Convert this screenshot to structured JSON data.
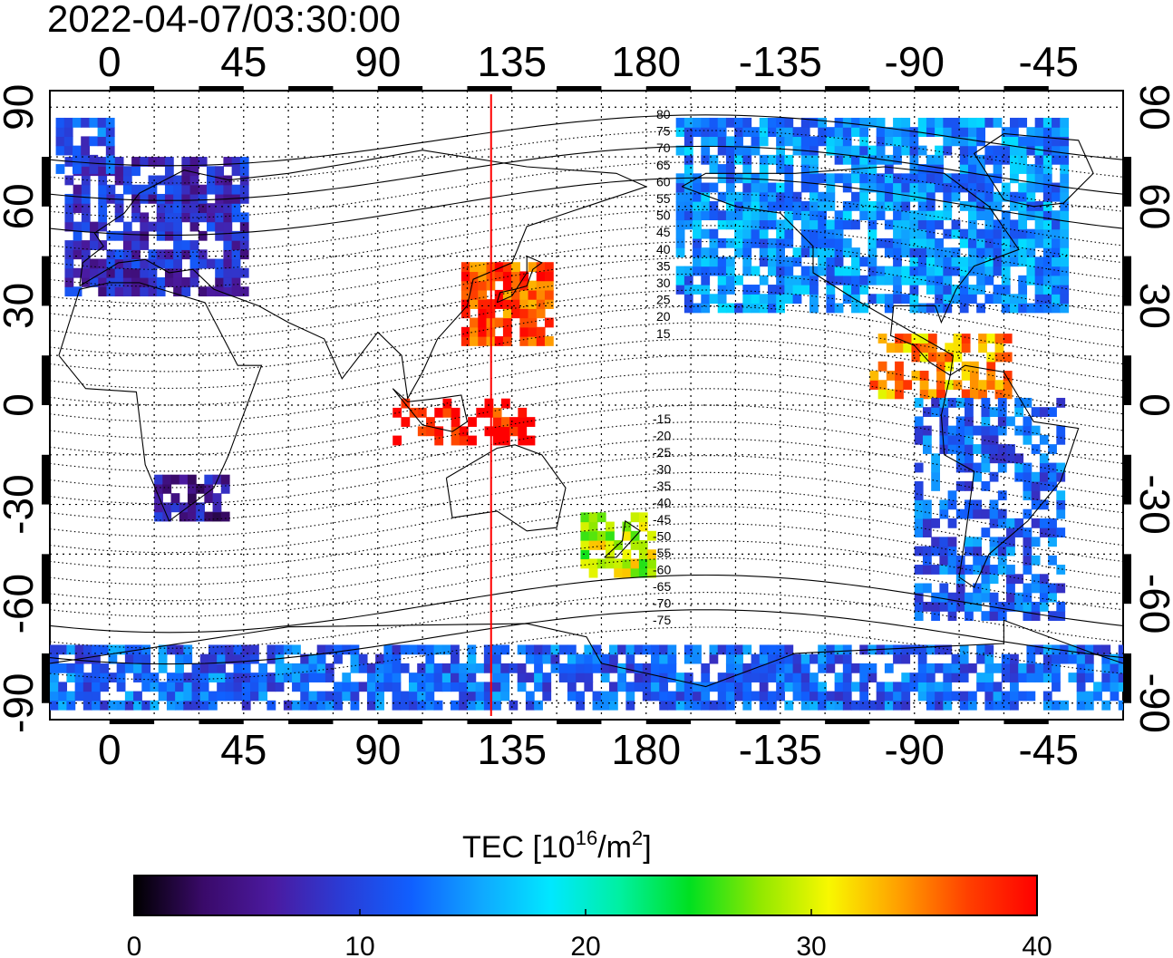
{
  "title": "2022-04-07/03:30:00",
  "map": {
    "top_lon_ticks": [
      "0",
      "45",
      "90",
      "135",
      "180",
      "-135",
      "-90",
      "-45"
    ],
    "bottom_lon_ticks": [
      "0",
      "45",
      "90",
      "135",
      "180",
      "-135",
      "-90",
      "-45"
    ],
    "left_lat_ticks": [
      "90",
      "60",
      "30",
      "0",
      "-30",
      "-60",
      "-90"
    ],
    "right_lat_ticks": [
      "90",
      "60",
      "30",
      "0",
      "-30",
      "-60",
      "-90"
    ],
    "lon_range": [
      -20,
      340
    ],
    "lat_range": [
      -95,
      95
    ],
    "marker_longitude": 128,
    "marker_color": "#ff0000",
    "contour_labels_north": [
      "80",
      "75",
      "70",
      "65",
      "60",
      "55",
      "50",
      "45",
      "40",
      "35",
      "30",
      "25",
      "20",
      "15"
    ],
    "contour_labels_south": [
      "-15",
      "-20",
      "-25",
      "-30",
      "-35",
      "-40",
      "-45",
      "-50",
      "-55",
      "-60",
      "-65",
      "-70",
      "-75"
    ]
  },
  "colorbar": {
    "label_main": "TEC  [10",
    "label_sup": "16",
    "label_mid": "/m",
    "label_sup2": "2",
    "label_end": "]",
    "min": 0,
    "max": 40,
    "ticks": [
      "0",
      "10",
      "20",
      "30",
      "40"
    ],
    "colormap": [
      "#000000",
      "#3a0a6a",
      "#4b1aa0",
      "#2a3cd6",
      "#1060ff",
      "#10a8ff",
      "#00e8ff",
      "#00f0a0",
      "#00e020",
      "#90e800",
      "#f8f800",
      "#ffa000",
      "#ff4000",
      "#ff0000"
    ]
  },
  "tec_regions": [
    {
      "name": "europe",
      "tec": 8
    },
    {
      "name": "north-atlantic-north",
      "tec": 11
    },
    {
      "name": "east-asia",
      "tec": 37
    },
    {
      "name": "north-america",
      "tec": 14
    },
    {
      "name": "central-america",
      "tec": 34
    },
    {
      "name": "south-america",
      "tec": 12
    },
    {
      "name": "southern-africa",
      "tec": 6
    },
    {
      "name": "indonesia",
      "tec": 39
    },
    {
      "name": "new-zealand",
      "tec": 29
    },
    {
      "name": "antarctica",
      "tec": 12
    }
  ]
}
